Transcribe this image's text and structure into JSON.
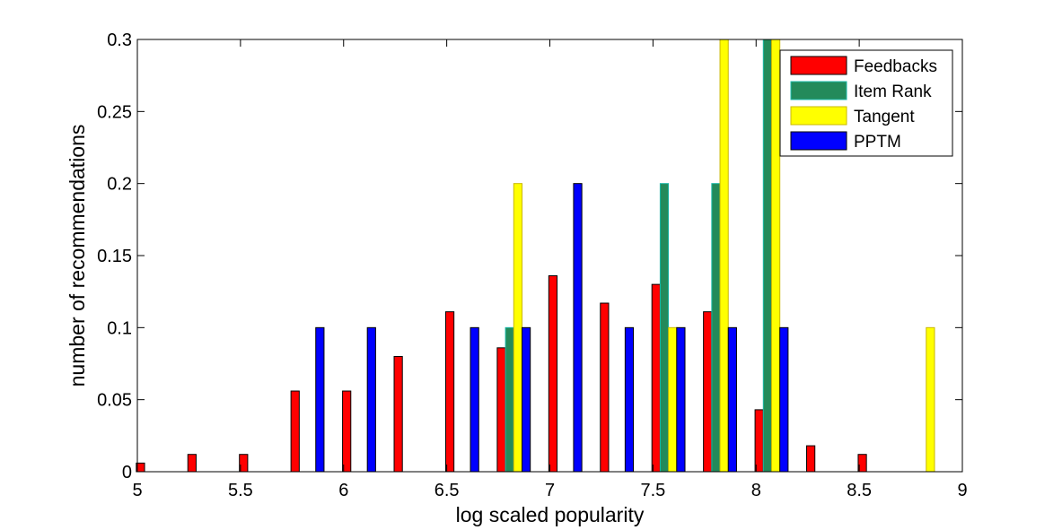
{
  "chart_data": {
    "type": "bar",
    "xlabel": "log scaled popularity",
    "ylabel": "number of recommendations",
    "xlim": [
      5,
      9
    ],
    "ylim": [
      0,
      0.3
    ],
    "x_ticks": [
      "5",
      "5.5",
      "6",
      "6.5",
      "7",
      "7.5",
      "8",
      "8.5",
      "9"
    ],
    "y_ticks": [
      "0",
      "0.05",
      "0.1",
      "0.15",
      "0.2",
      "0.25",
      "0.3"
    ],
    "grid": false,
    "legend_position": "top-right",
    "bins": [
      5.075,
      5.325,
      5.575,
      5.825,
      6.075,
      6.325,
      6.575,
      6.825,
      7.075,
      7.325,
      7.575,
      7.825,
      8.075,
      8.325,
      8.575,
      8.825
    ],
    "series": [
      {
        "name": "Feedbacks",
        "color": "#ff0000",
        "values": [
          0.006,
          0.012,
          0.012,
          0.056,
          0.056,
          0.08,
          0.111,
          0.086,
          0.136,
          0.117,
          0.13,
          0.111,
          0.043,
          0.018,
          0.012,
          0
        ]
      },
      {
        "name": "Item Rank",
        "color": "#238a5a",
        "values": [
          0,
          0,
          0,
          0,
          0,
          0,
          0,
          0.1,
          0,
          0,
          0.2,
          0.2,
          0.3,
          0,
          0,
          0
        ]
      },
      {
        "name": "Tangent",
        "color": "#ffff00",
        "values": [
          0,
          0,
          0,
          0,
          0,
          0,
          0,
          0.2,
          0,
          0,
          0.1,
          0.3,
          0.3,
          0,
          0,
          0.1
        ]
      },
      {
        "name": "PPTM",
        "color": "#0000ff",
        "values": [
          0,
          0,
          0,
          0.1,
          0.1,
          0,
          0.1,
          0.1,
          0.2,
          0.1,
          0.1,
          0.1,
          0.1,
          0,
          0,
          0
        ]
      }
    ]
  }
}
